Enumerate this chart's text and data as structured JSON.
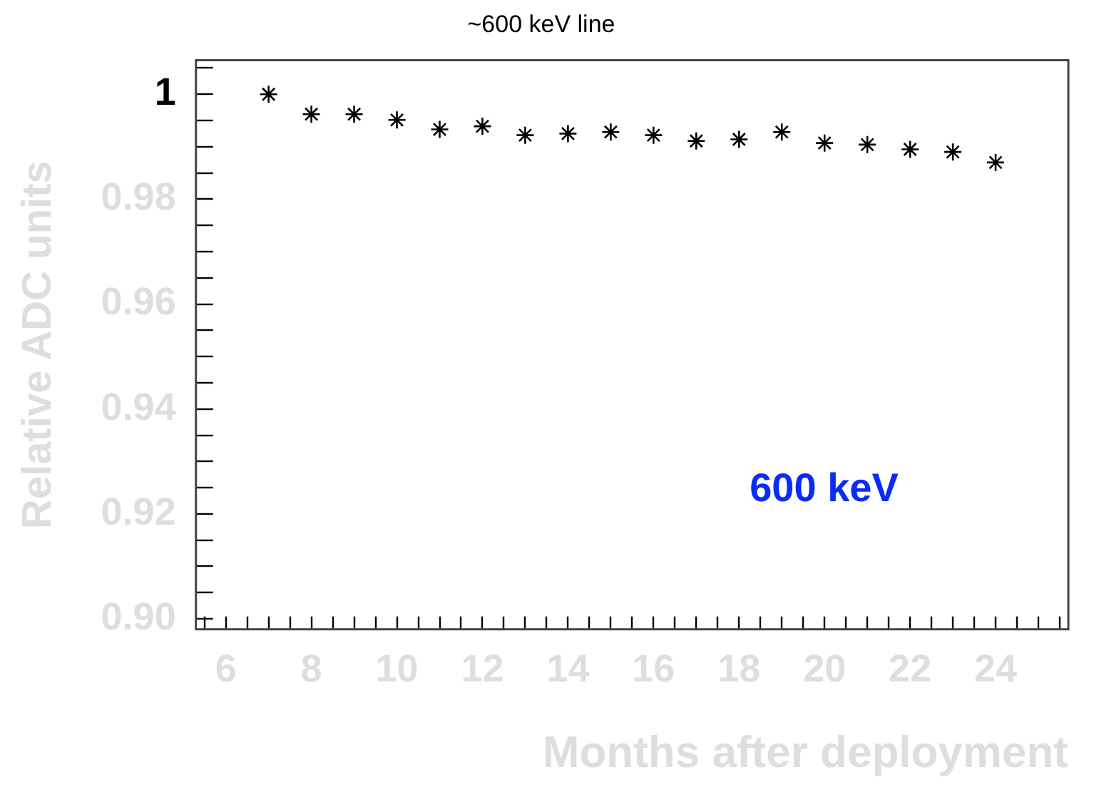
{
  "chart_data": {
    "type": "scatter",
    "title": "~600 keV line",
    "xlabel": "Months after deployment",
    "ylabel": "Relative ADC units",
    "annotations": [
      "600 keV"
    ],
    "x": [
      7,
      8,
      9,
      10,
      11,
      12,
      13,
      14,
      15,
      16,
      17,
      18,
      19,
      20,
      21,
      22,
      23,
      24
    ],
    "series": [
      {
        "color": "#000000",
        "values": [
          1.0,
          0.9962,
          0.9962,
          0.9951,
          0.9933,
          0.9939,
          0.9922,
          0.9925,
          0.9928,
          0.9922,
          0.9911,
          0.9914,
          0.9928,
          0.9907,
          0.9904,
          0.9895,
          0.989,
          0.987
        ]
      }
    ],
    "xlim": [
      5.3,
      25.7
    ],
    "ylim": [
      0.898,
      1.0065
    ],
    "xticks": [
      {
        "value": 5.5,
        "label": null
      },
      6,
      {
        "value": 6.5,
        "label": null
      },
      {
        "value": 7,
        "label": null
      },
      {
        "value": 7.5,
        "label": null
      },
      8,
      {
        "value": 8.5,
        "label": null
      },
      {
        "value": 9,
        "label": null
      },
      {
        "value": 9.5,
        "label": null
      },
      10,
      {
        "value": 10.5,
        "label": null
      },
      {
        "value": 11,
        "label": null
      },
      {
        "value": 11.5,
        "label": null
      },
      12,
      {
        "value": 12.5,
        "label": null
      },
      {
        "value": 13,
        "label": null
      },
      {
        "value": 13.5,
        "label": null
      },
      14,
      {
        "value": 14.5,
        "label": null
      },
      {
        "value": 15,
        "label": null
      },
      {
        "value": 15.5,
        "label": null
      },
      16,
      {
        "value": 16.5,
        "label": null
      },
      {
        "value": 17,
        "label": null
      },
      {
        "value": 17.5,
        "label": null
      },
      18,
      {
        "value": 18.5,
        "label": null
      },
      {
        "value": 19,
        "label": null
      },
      {
        "value": 19.5,
        "label": null
      },
      20,
      {
        "value": 20.5,
        "label": null
      },
      {
        "value": 21,
        "label": null
      },
      {
        "value": 21.5,
        "label": null
      },
      22,
      {
        "value": 22.5,
        "label": null
      },
      {
        "value": 23,
        "label": null
      },
      {
        "value": 23.5,
        "label": null
      },
      24,
      {
        "value": 24.5,
        "label": null
      },
      {
        "value": 25,
        "label": null
      },
      {
        "value": 25.5,
        "label": null
      }
    ],
    "yticks": [
      {
        "value": 0.9,
        "label": "0.90"
      },
      {
        "value": 0.905,
        "label": null
      },
      {
        "value": 0.91,
        "label": null
      },
      {
        "value": 0.915,
        "label": null
      },
      0.92,
      {
        "value": 0.925,
        "label": null
      },
      {
        "value": 0.93,
        "label": null
      },
      {
        "value": 0.935,
        "label": null
      },
      0.94,
      {
        "value": 0.945,
        "label": null
      },
      {
        "value": 0.95,
        "label": null
      },
      {
        "value": 0.955,
        "label": null
      },
      0.96,
      {
        "value": 0.965,
        "label": null
      },
      {
        "value": 0.97,
        "label": null
      },
      {
        "value": 0.975,
        "label": null
      },
      0.98,
      {
        "value": 0.985,
        "label": null
      },
      {
        "value": 0.99,
        "label": null
      },
      {
        "value": 0.995,
        "label": null
      },
      1,
      {
        "value": 1.005,
        "label": null
      }
    ],
    "grid": false,
    "legend": false,
    "marker": "cross"
  }
}
